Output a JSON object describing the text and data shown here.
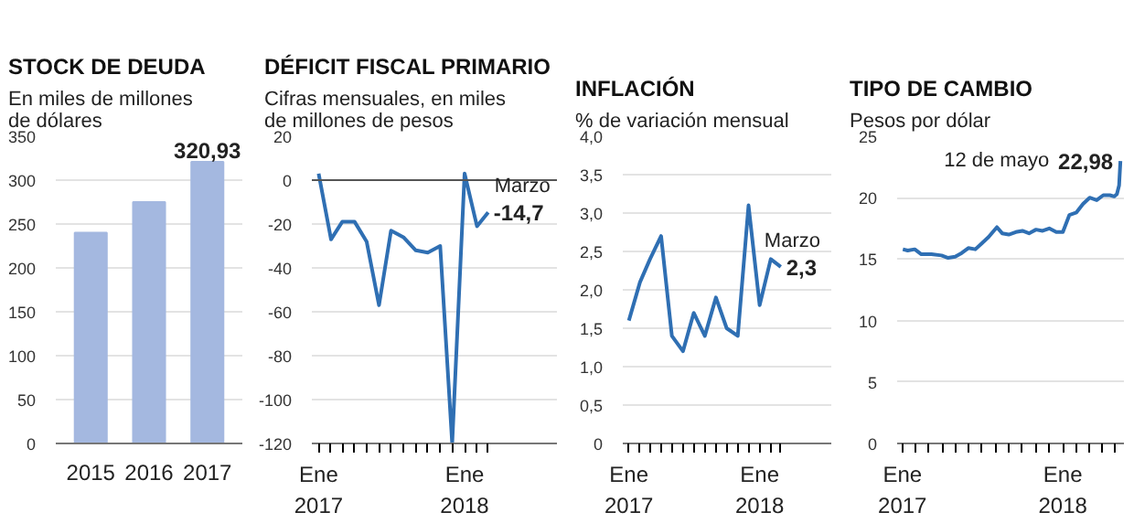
{
  "chart_data": [
    {
      "type": "bar",
      "title": "STOCK DE DEUDA",
      "subtitle": "En miles de millones de dólares",
      "categories": [
        "2015",
        "2016",
        "2017"
      ],
      "values": [
        240,
        275,
        320.93
      ],
      "value_labels": [
        null,
        null,
        "320,93"
      ],
      "color": "#a4b8e0",
      "ylim": [
        0,
        350
      ],
      "yticks": [
        0,
        50,
        100,
        150,
        200,
        250,
        300,
        350
      ],
      "grid": "y"
    },
    {
      "type": "line",
      "title": "DÉFICIT FISCAL PRIMARIO",
      "subtitle": "Cifras mensuales, en miles de millones de pesos",
      "annotations": [
        "Marzo"
      ],
      "color": "#2f6fb3",
      "x": [
        "2017-01",
        "2017-02",
        "2017-03",
        "2017-04",
        "2017-05",
        "2017-06",
        "2017-07",
        "2017-08",
        "2017-09",
        "2017-10",
        "2017-11",
        "2017-12",
        "2018-01",
        "2018-02",
        "2018-03"
      ],
      "values": [
        3,
        -27,
        -19,
        -19,
        -28,
        -57,
        -23,
        -26,
        -32,
        -33,
        -30,
        -120,
        3,
        -21,
        -14.7
      ],
      "value_labels": [
        null,
        null,
        null,
        null,
        null,
        null,
        null,
        null,
        null,
        null,
        null,
        null,
        null,
        null,
        "-14,7"
      ],
      "ylim": [
        -120,
        20
      ],
      "yticks": [
        -120,
        -100,
        -80,
        -60,
        -40,
        -20,
        0,
        20
      ],
      "xlim": [
        "2016-12-15",
        "2018-08-20"
      ],
      "xticks": [
        {
          "value": "2017-01",
          "label": "Ene\n2017"
        },
        {
          "value": "2017-02",
          "label": null
        },
        {
          "value": "2017-03",
          "label": null
        },
        {
          "value": "2017-04",
          "label": null
        },
        {
          "value": "2017-05",
          "label": null
        },
        {
          "value": "2017-06",
          "label": null
        },
        {
          "value": "2017-07",
          "label": null
        },
        {
          "value": "2017-08",
          "label": null
        },
        {
          "value": "2017-09",
          "label": null
        },
        {
          "value": "2017-10",
          "label": null
        },
        {
          "value": "2017-11",
          "label": null
        },
        {
          "value": "2017-12",
          "label": null
        },
        {
          "value": "2018-01",
          "label": "Ene\n2018"
        },
        {
          "value": "2018-02",
          "label": null
        },
        {
          "value": "2018-03",
          "label": null
        }
      ],
      "ref_lines": [
        {
          "axis": "y",
          "value": 0,
          "color": "#555555"
        }
      ],
      "grid": "y"
    },
    {
      "type": "line",
      "title": "INFLACIÓN",
      "subtitle": "% de variación mensual",
      "annotations": [
        "Marzo"
      ],
      "color": "#2f6fb3",
      "x": [
        "2017-01",
        "2017-02",
        "2017-03",
        "2017-04",
        "2017-05",
        "2017-06",
        "2017-07",
        "2017-08",
        "2017-09",
        "2017-10",
        "2017-11",
        "2017-12",
        "2018-01",
        "2018-02",
        "2018-03"
      ],
      "values": [
        1.6,
        2.1,
        2.4,
        2.7,
        1.4,
        1.2,
        1.7,
        1.4,
        1.9,
        1.5,
        1.4,
        3.1,
        1.8,
        2.4,
        2.3
      ],
      "value_labels": [
        null,
        null,
        null,
        null,
        null,
        null,
        null,
        null,
        null,
        null,
        null,
        null,
        null,
        null,
        "2,3"
      ],
      "ylim": [
        0,
        4
      ],
      "yticks": [
        0,
        {
          "value": 0.5,
          "label": "0,5"
        },
        {
          "value": 1,
          "label": "1,0"
        },
        {
          "value": 1.5,
          "label": "1,5"
        },
        {
          "value": 2,
          "label": "2,0"
        },
        {
          "value": 2.5,
          "label": "2,5"
        },
        {
          "value": 3,
          "label": "3,0"
        },
        {
          "value": 3.5,
          "label": "3,5"
        },
        {
          "value": 4,
          "label": "4,0"
        }
      ],
      "xlim": [
        "2016-12-15",
        "2018-07-20"
      ],
      "xticks": [
        {
          "value": "2017-01",
          "label": "Ene\n2017"
        },
        {
          "value": "2017-02",
          "label": null
        },
        {
          "value": "2017-03",
          "label": null
        },
        {
          "value": "2017-04",
          "label": null
        },
        {
          "value": "2017-05",
          "label": null
        },
        {
          "value": "2017-06",
          "label": null
        },
        {
          "value": "2017-07",
          "label": null
        },
        {
          "value": "2017-08",
          "label": null
        },
        {
          "value": "2017-09",
          "label": null
        },
        {
          "value": "2017-10",
          "label": null
        },
        {
          "value": "2017-11",
          "label": null
        },
        {
          "value": "2017-12",
          "label": null
        },
        {
          "value": "2018-01",
          "label": "Ene\n2018"
        },
        {
          "value": "2018-02",
          "label": null
        },
        {
          "value": "2018-03",
          "label": null
        }
      ],
      "grid": "y"
    },
    {
      "type": "line",
      "title": "TIPO DE CAMBIO",
      "subtitle": "Pesos por dólar",
      "annotations": [
        "12 de mayo"
      ],
      "color": "#2f6fb3",
      "x": [
        "2017-01-02",
        "2017-01-13",
        "2017-01-29",
        "2017-02-13",
        "2017-03-08",
        "2017-03-31",
        "2017-04-15",
        "2017-05-01",
        "2017-05-16",
        "2017-05-31",
        "2017-06-16",
        "2017-07-01",
        "2017-07-16",
        "2017-08-04",
        "2017-08-16",
        "2017-08-31",
        "2017-09-16",
        "2017-10-01",
        "2017-10-16",
        "2017-11-01",
        "2017-11-16",
        "2017-12-01",
        "2017-12-17",
        "2018-01-01",
        "2018-01-16",
        "2018-02-01",
        "2018-02-16",
        "2018-03-03",
        "2018-03-19",
        "2018-04-03",
        "2018-04-18",
        "2018-04-28",
        "2018-05-04",
        "2018-05-09",
        "2018-05-12"
      ],
      "values": [
        15.8,
        15.7,
        15.8,
        15.4,
        15.4,
        15.3,
        15.1,
        15.2,
        15.5,
        15.9,
        15.8,
        16.3,
        16.8,
        17.6,
        17.1,
        17.0,
        17.2,
        17.3,
        17.1,
        17.4,
        17.3,
        17.5,
        17.2,
        17.2,
        18.6,
        18.8,
        19.5,
        20.0,
        19.8,
        20.2,
        20.2,
        20.1,
        20.3,
        21.0,
        22.98
      ],
      "value_labels": [
        null,
        null,
        null,
        null,
        null,
        null,
        null,
        null,
        null,
        null,
        null,
        null,
        null,
        null,
        null,
        null,
        null,
        null,
        null,
        null,
        null,
        null,
        null,
        null,
        null,
        null,
        null,
        null,
        null,
        null,
        null,
        null,
        null,
        null,
        "22,98"
      ],
      "ylim": [
        0,
        25
      ],
      "yticks": [
        0,
        5,
        10,
        15,
        20,
        25
      ],
      "xlim": [
        "2016-12-20",
        "2018-05-20"
      ],
      "xticks": [
        {
          "value": "2017-01",
          "label": "Ene\n2017"
        },
        {
          "value": "2017-02",
          "label": null
        },
        {
          "value": "2017-03",
          "label": null
        },
        {
          "value": "2017-04",
          "label": null
        },
        {
          "value": "2017-05",
          "label": null
        },
        {
          "value": "2017-06",
          "label": null
        },
        {
          "value": "2017-07",
          "label": null
        },
        {
          "value": "2017-08",
          "label": null
        },
        {
          "value": "2017-09",
          "label": null
        },
        {
          "value": "2017-10",
          "label": null
        },
        {
          "value": "2017-11",
          "label": null
        },
        {
          "value": "2017-12",
          "label": null
        },
        {
          "value": "2018-01",
          "label": "Ene\n2018"
        },
        {
          "value": "2018-02",
          "label": null
        },
        {
          "value": "2018-03",
          "label": null
        },
        {
          "value": "2018-04",
          "label": null
        },
        {
          "value": "2018-05",
          "label": null
        }
      ],
      "grid": "y"
    }
  ]
}
